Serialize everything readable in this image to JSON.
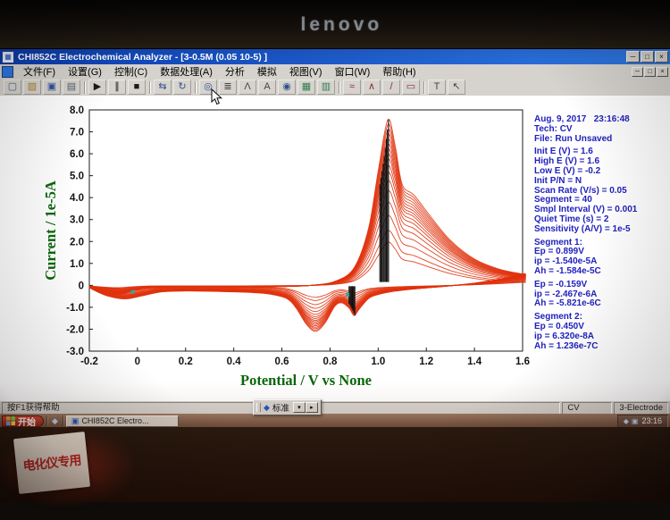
{
  "photo": {
    "brand": "lenovo",
    "sticky_note": "电化仪专用"
  },
  "window": {
    "title": "CHI852C Electrochemical Analyzer - [3-0.5M (0.05 10-5) ]",
    "controls": [
      "─",
      "□",
      "×"
    ]
  },
  "menu": {
    "items": [
      "文件(F)",
      "设置(G)",
      "控制(C)",
      "数据处理(A)",
      "分析",
      "模拟",
      "视图(V)",
      "窗口(W)",
      "帮助(H)"
    ]
  },
  "toolbar": {
    "icons": [
      {
        "name": "new-file-icon",
        "glyph": "▢",
        "color": "#49648c"
      },
      {
        "name": "open-file-icon",
        "glyph": "▧",
        "color": "#a8832c"
      },
      {
        "name": "save-icon",
        "glyph": "▣",
        "color": "#34519c"
      },
      {
        "name": "print-icon",
        "glyph": "▤",
        "color": "#55606e",
        "sep_after": true
      },
      {
        "name": "run-icon",
        "glyph": "▶",
        "color": "#1a1a1a"
      },
      {
        "name": "pause-icon",
        "glyph": "∥",
        "color": "#1a1a1a"
      },
      {
        "name": "stop-icon",
        "glyph": "■",
        "color": "#1a1a1a",
        "sep_after": true
      },
      {
        "name": "reverse-scan-icon",
        "glyph": "⇆",
        "color": "#33518e"
      },
      {
        "name": "repeat-run-icon",
        "glyph": "↻",
        "color": "#33518e",
        "sep_after": true
      },
      {
        "name": "zoom-icon",
        "glyph": "◎",
        "color": "#33518e"
      },
      {
        "name": "data-list-icon",
        "glyph": "≣",
        "color": "#444444"
      },
      {
        "name": "peak-definition-icon",
        "glyph": "Λ",
        "color": "#444444"
      },
      {
        "name": "text-label-icon",
        "glyph": "A",
        "color": "#444444"
      },
      {
        "name": "clock-icon",
        "glyph": "◉",
        "color": "#33518e"
      },
      {
        "name": "graph-options-icon",
        "glyph": "▦",
        "color": "#2e7d4f"
      },
      {
        "name": "bar-graph-icon",
        "glyph": "▥",
        "color": "#2e7d4f",
        "sep_after": true
      },
      {
        "name": "smooth-icon",
        "glyph": "≈",
        "color": "#8a2e2e"
      },
      {
        "name": "derivative-icon",
        "glyph": "∧",
        "color": "#8a2e2e"
      },
      {
        "name": "slope-icon",
        "glyph": "/",
        "color": "#8a2e2e"
      },
      {
        "name": "baseline-icon",
        "glyph": "▭",
        "color": "#8a2e2e",
        "sep_after": true
      },
      {
        "name": "text-tool-icon",
        "glyph": "T",
        "color": "#444444"
      },
      {
        "name": "pointer-tool-icon",
        "glyph": "↖",
        "color": "#444444"
      }
    ]
  },
  "panel": {
    "lines": [
      "Aug. 9, 2017   23:16:48",
      "Tech: CV",
      "File: Run Unsaved",
      "",
      "Init E (V) = 1.6",
      "High E (V) = 1.6",
      "Low E (V) = -0.2",
      "Init P/N = N",
      "Scan Rate (V/s) = 0.05",
      "Segment = 40",
      "Smpl Interval (V) = 0.001",
      "Quiet Time (s) = 2",
      "Sensitivity (A/V) = 1e-5",
      "",
      "Segment 1:",
      "Ep = 0.899V",
      "ip = -1.540e-5A",
      "Ah = -1.584e-5C",
      "",
      "Ep = -0.159V",
      "ip = -2.467e-6A",
      "Ah = -5.821e-6C",
      "",
      "Segment 2:",
      "Ep = 0.450V",
      "ip = 6.320e-8A",
      "Ah = 1.236e-7C"
    ]
  },
  "status_bar": {
    "left": "按F1获得帮助",
    "cells": [
      "CV",
      "3-Electrode"
    ]
  },
  "floating_toolbar": {
    "label": "标准",
    "icon_glyph": "◆",
    "buttons": [
      "▾",
      "▸"
    ]
  },
  "taskbar": {
    "start": "开始",
    "quick_launch": [
      "◆"
    ],
    "tasks": [
      "CHI852C Electro..."
    ],
    "tray_icons": [
      "◆",
      "▣"
    ],
    "tray_time": "23:16"
  },
  "chart_data": {
    "type": "line",
    "title": "",
    "xlabel": "Potential / V vs None",
    "ylabel": "Current / 1e-5A",
    "xlim": [
      -0.2,
      1.6
    ],
    "ylim": [
      -3.0,
      8.0
    ],
    "grid": false,
    "legend": null,
    "curve_color": "#e0320c",
    "axis_title_color": "#0a660a",
    "dot_color": "#2aa8a0",
    "xticks": [
      {
        "v": -0.2,
        "label": "-0.2"
      },
      {
        "v": 0,
        "label": "0"
      },
      {
        "v": 0.2,
        "label": "0.2"
      },
      {
        "v": 0.4,
        "label": "0.4"
      },
      {
        "v": 0.6,
        "label": "0.6"
      },
      {
        "v": 0.8,
        "label": "0.8"
      },
      {
        "v": 1.0,
        "label": "1.0"
      },
      {
        "v": 1.2,
        "label": "1.2"
      },
      {
        "v": 1.4,
        "label": "1.4"
      },
      {
        "v": 1.6,
        "label": "1.6"
      }
    ],
    "yticks": [
      {
        "v": 8,
        "label": "8.0"
      },
      {
        "v": 7,
        "label": "7.0"
      },
      {
        "v": 6,
        "label": "6.0"
      },
      {
        "v": 5,
        "label": "5.0"
      },
      {
        "v": 4,
        "label": "4.0"
      },
      {
        "v": 3,
        "label": "3.0"
      },
      {
        "v": 2,
        "label": "2.0"
      },
      {
        "v": 1,
        "label": "1.0"
      },
      {
        "v": 0,
        "label": "0"
      },
      {
        "v": -1,
        "label": "-1.0"
      },
      {
        "v": -2,
        "label": "-2.0"
      },
      {
        "v": -3,
        "label": "-3.0"
      }
    ],
    "cycles_scales": [
      1,
      0.97,
      0.94,
      0.91,
      0.88,
      0.85,
      0.82,
      0.79,
      0.76,
      0.72,
      0.68,
      0.63,
      0.57,
      0.5,
      0.42,
      0.33,
      0.26
    ],
    "forward": [
      [
        -0.2,
        -0.1
      ],
      [
        -0.14,
        -0.3
      ],
      [
        -0.08,
        -0.42
      ],
      [
        -0.02,
        -0.25
      ],
      [
        0.05,
        -0.12
      ],
      [
        0.15,
        -0.1
      ],
      [
        0.3,
        -0.1
      ],
      [
        0.45,
        -0.09
      ],
      [
        0.6,
        -0.06
      ],
      [
        0.72,
        0.0
      ],
      [
        0.82,
        0.18
      ],
      [
        0.9,
        0.8
      ],
      [
        0.96,
        2.6
      ],
      [
        1.0,
        5.2
      ],
      [
        1.04,
        7.55
      ],
      [
        1.07,
        6.4
      ],
      [
        1.1,
        4.6
      ],
      [
        1.15,
        4.1
      ],
      [
        1.22,
        3.1
      ],
      [
        1.3,
        2.05
      ],
      [
        1.4,
        1.2
      ],
      [
        1.5,
        0.75
      ],
      [
        1.6,
        0.52
      ]
    ],
    "reverse": [
      [
        1.6,
        0.52
      ],
      [
        1.5,
        0.28
      ],
      [
        1.4,
        0.1
      ],
      [
        1.3,
        -0.02
      ],
      [
        1.2,
        -0.12
      ],
      [
        1.12,
        -0.2
      ],
      [
        1.05,
        -0.3
      ],
      [
        1.0,
        -0.42
      ],
      [
        0.96,
        -0.6
      ],
      [
        0.92,
        -1.1
      ],
      [
        0.9,
        -1.38
      ],
      [
        0.88,
        -1.05
      ],
      [
        0.85,
        -0.8
      ],
      [
        0.82,
        -0.95
      ],
      [
        0.78,
        -1.7
      ],
      [
        0.74,
        -2.1
      ],
      [
        0.7,
        -1.75
      ],
      [
        0.66,
        -1.05
      ],
      [
        0.62,
        -0.6
      ],
      [
        0.55,
        -0.4
      ],
      [
        0.48,
        -0.33
      ],
      [
        0.4,
        -0.3
      ],
      [
        0.3,
        -0.27
      ],
      [
        0.2,
        -0.26
      ],
      [
        0.1,
        -0.3
      ],
      [
        0.02,
        -0.48
      ],
      [
        -0.05,
        -0.62
      ],
      [
        -0.12,
        -0.5
      ],
      [
        -0.17,
        -0.28
      ],
      [
        -0.2,
        -0.1
      ]
    ],
    "peak_markers": [
      {
        "x": 1.043,
        "base": 0.15,
        "peak": 7.55,
        "count": 9,
        "dx": -0.0045,
        "shrink": 0.94
      },
      {
        "x": 0.903,
        "base": -0.04,
        "peak": -1.38,
        "count": 7,
        "dx": -0.004,
        "shrink": 0.92
      }
    ],
    "dot_markers": [
      [
        0.873,
        -0.42
      ],
      [
        -0.02,
        -0.3
      ]
    ]
  }
}
